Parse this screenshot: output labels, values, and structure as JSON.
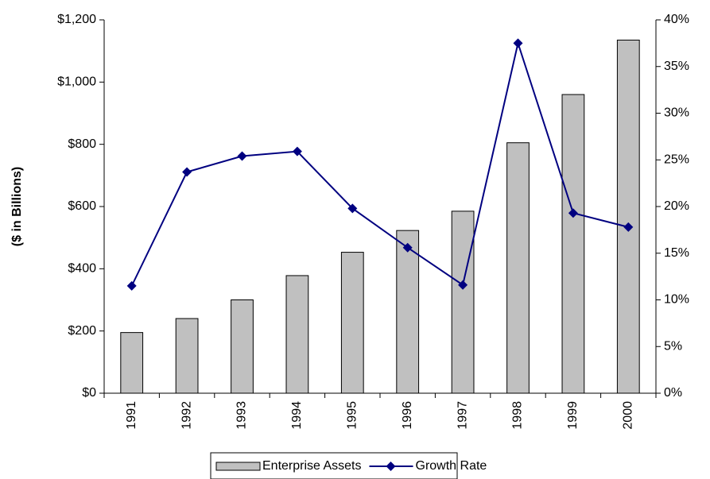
{
  "chart_data": {
    "type": "bar_line",
    "y_label": "($ in Billions)",
    "categories": [
      "1991",
      "1992",
      "1993",
      "1994",
      "1995",
      "1996",
      "1997",
      "1998",
      "1999",
      "2000"
    ],
    "series": [
      {
        "name": "Enterprise Assets",
        "type": "bar",
        "color": "#c0c0c0",
        "values": [
          195,
          240,
          300,
          378,
          453,
          523,
          585,
          805,
          960,
          1135
        ]
      },
      {
        "name": "Growth Rate",
        "type": "line",
        "axis": "y2",
        "color": "#000080",
        "values": [
          11.5,
          23.7,
          25.4,
          25.9,
          19.8,
          15.6,
          11.6,
          37.5,
          19.3,
          17.8
        ]
      }
    ],
    "ylim": [
      0,
      1200
    ],
    "yticks": [
      {
        "value": 0,
        "label": "$0"
      },
      {
        "value": 200,
        "label": "$200"
      },
      {
        "value": 400,
        "label": "$400"
      },
      {
        "value": 600,
        "label": "$600"
      },
      {
        "value": 800,
        "label": "$800"
      },
      {
        "value": 1000,
        "label": "$1,000"
      },
      {
        "value": 1200,
        "label": "$1,200"
      }
    ],
    "y2lim": [
      0,
      40
    ],
    "y2ticks": [
      {
        "value": 0,
        "label": "0%"
      },
      {
        "value": 5,
        "label": "5%"
      },
      {
        "value": 10,
        "label": "10%"
      },
      {
        "value": 15,
        "label": "15%"
      },
      {
        "value": 20,
        "label": "20%"
      },
      {
        "value": 25,
        "label": "25%"
      },
      {
        "value": 30,
        "label": "30%"
      },
      {
        "value": 35,
        "label": "35%"
      },
      {
        "value": 40,
        "label": "40%"
      }
    ],
    "grid": false,
    "legend": "bottom"
  }
}
